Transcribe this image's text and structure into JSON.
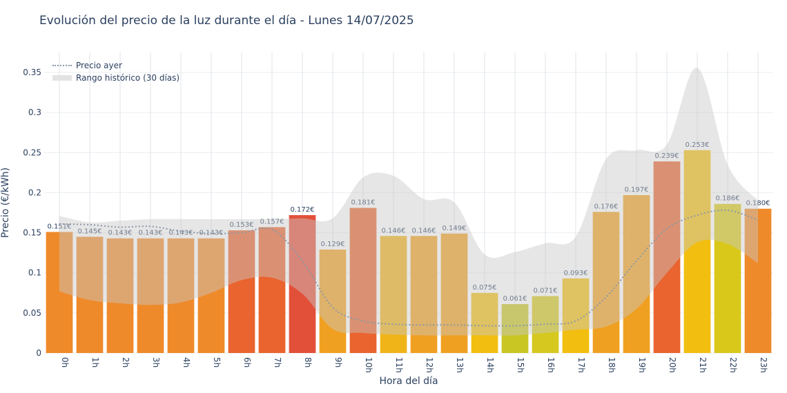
{
  "chart_data": {
    "type": "bar",
    "title": "Evolución del precio de la luz durante el día - Lunes 14/07/2025",
    "xlabel": "Hora del día",
    "ylabel": "Precio (€/kWh)",
    "ylim": [
      0,
      0.375
    ],
    "yticks": [
      0,
      0.05,
      0.1,
      0.15,
      0.2,
      0.25,
      0.3,
      0.35
    ],
    "ytick_labels": [
      "0",
      "0.05",
      "0.1",
      "0.15",
      "0.2",
      "0.25",
      "0.3",
      "0.35"
    ],
    "categories": [
      "0h",
      "1h",
      "2h",
      "3h",
      "4h",
      "5h",
      "6h",
      "7h",
      "8h",
      "9h",
      "10h",
      "11h",
      "12h",
      "13h",
      "14h",
      "15h",
      "16h",
      "17h",
      "18h",
      "19h",
      "20h",
      "21h",
      "22h",
      "23h"
    ],
    "values": [
      0.151,
      0.145,
      0.143,
      0.143,
      0.143,
      0.143,
      0.153,
      0.157,
      0.172,
      0.129,
      0.181,
      0.146,
      0.146,
      0.149,
      0.075,
      0.061,
      0.071,
      0.093,
      0.176,
      0.197,
      0.239,
      0.253,
      0.186,
      0.18
    ],
    "value_labels": [
      "0.151€",
      "0.145€",
      "0.143€",
      "0.143€",
      "0.143€",
      "0.143€",
      "0.153€",
      "0.157€",
      "0.172€",
      "0.129€",
      "0.181€",
      "0.146€",
      "0.146€",
      "0.149€",
      "0.075€",
      "0.061€",
      "0.071€",
      "0.093€",
      "0.176€",
      "0.197€",
      "0.239€",
      "0.253€",
      "0.186€",
      "0.180€"
    ],
    "bar_colors": [
      "#ef8a2a",
      "#ef8a2a",
      "#ef8a2a",
      "#ef8a2a",
      "#ef8a2a",
      "#ef8a2a",
      "#e9642f",
      "#e9642f",
      "#e3503a",
      "#f0a020",
      "#e9642f",
      "#f0b318",
      "#f0a020",
      "#f0a020",
      "#f2be10",
      "#c9c623",
      "#d6c81e",
      "#f2be10",
      "#f0a020",
      "#f0a020",
      "#e9642f",
      "#f2be10",
      "#d9c81a",
      "#ef8a2a"
    ],
    "series": [
      {
        "name": "Precio ayer",
        "style": "dotted-line",
        "color": "#8a97a6",
        "values": [
          0.161,
          0.16,
          0.157,
          0.158,
          0.152,
          0.149,
          0.15,
          0.154,
          0.115,
          0.057,
          0.04,
          0.036,
          0.035,
          0.035,
          0.034,
          0.034,
          0.036,
          0.04,
          0.07,
          0.115,
          0.155,
          0.172,
          0.178,
          0.166
        ]
      },
      {
        "name": "Rango histórico (30 días)",
        "style": "band",
        "color": "#dcdcdc",
        "upper": [
          0.171,
          0.163,
          0.165,
          0.167,
          0.167,
          0.167,
          0.167,
          0.167,
          0.168,
          0.168,
          0.219,
          0.221,
          0.192,
          0.188,
          0.123,
          0.126,
          0.137,
          0.145,
          0.242,
          0.253,
          0.26,
          0.356,
          0.235,
          0.19
        ],
        "lower": [
          0.077,
          0.066,
          0.062,
          0.06,
          0.063,
          0.075,
          0.091,
          0.094,
          0.074,
          0.03,
          0.025,
          0.023,
          0.022,
          0.022,
          0.022,
          0.022,
          0.025,
          0.029,
          0.033,
          0.055,
          0.1,
          0.138,
          0.136,
          0.112
        ]
      }
    ],
    "grid": true,
    "legend_placement": "top-left"
  }
}
